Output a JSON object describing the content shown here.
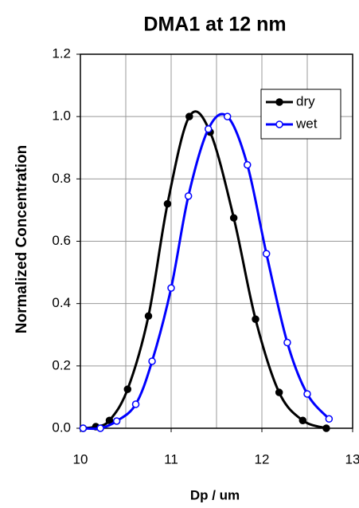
{
  "chart_data": {
    "type": "line",
    "title": "DMA1 at 12 nm",
    "x_label": "Dp / um",
    "y_label": "Normalized Concentration",
    "xlim": [
      10,
      13
    ],
    "xticks": [
      10,
      11,
      12,
      13
    ],
    "ylim": [
      0,
      1.2
    ],
    "yticks": [
      {
        "value": 0,
        "label": "0.0"
      },
      0.2,
      0.4,
      0.6,
      0.8,
      {
        "value": 1,
        "label": "1.0"
      },
      1.2
    ],
    "grid": true,
    "legend": "upper right",
    "series": [
      {
        "name": "dry",
        "color": "#000000",
        "x": [
          10.03,
          10.17,
          10.32,
          10.52,
          10.75,
          10.96,
          11.2,
          11.43,
          11.69,
          11.93,
          12.19,
          12.45,
          12.71
        ],
        "values": [
          0,
          0.005,
          0.025,
          0.125,
          0.36,
          0.72,
          1.0,
          0.95,
          0.675,
          0.35,
          0.115,
          0.025,
          0
        ]
      },
      {
        "name": "wet",
        "color": "#0000ff",
        "x": [
          10.03,
          10.22,
          10.4,
          10.61,
          10.79,
          11.0,
          11.19,
          11.41,
          11.62,
          11.84,
          12.05,
          12.28,
          12.5,
          12.74
        ],
        "values": [
          0,
          0,
          0.023,
          0.077,
          0.215,
          0.45,
          0.745,
          0.96,
          1.0,
          0.845,
          0.56,
          0.275,
          0.11,
          0.03
        ]
      }
    ]
  }
}
